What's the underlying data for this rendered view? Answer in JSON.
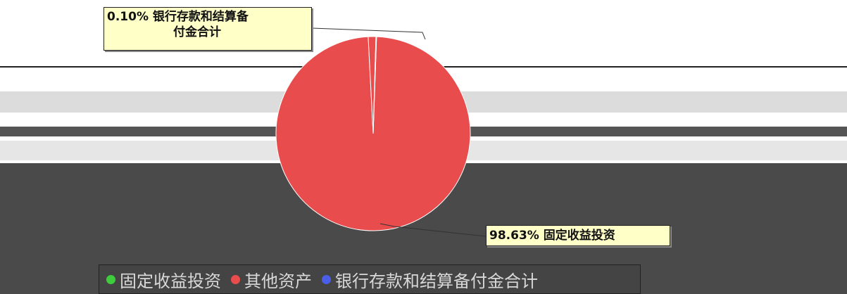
{
  "chart_data": {
    "type": "pie",
    "title": "",
    "slices": [
      {
        "label": "固定收益投资",
        "value": 98.63,
        "color": "#e84c4c"
      },
      {
        "label": "其他资产",
        "value": 1.27,
        "color": "#e84c4c"
      },
      {
        "label": "银行存款和结算备付金合计",
        "value": 0.1,
        "color": "#4a5ee8"
      }
    ],
    "callouts": [
      {
        "pct": "0.10%",
        "line1": "银行存款和结算备",
        "line2": "付金合计"
      },
      {
        "pct": "98.63%",
        "line1": "固定收益投资"
      }
    ],
    "legend_items": [
      {
        "label": "固定收益投资",
        "color": "#3ccc3c"
      },
      {
        "label": "其他资产",
        "color": "#e84c4c"
      },
      {
        "label": "银行存款和结算备付金合计",
        "color": "#4a5ee8"
      }
    ],
    "legend_position": "bottom"
  }
}
